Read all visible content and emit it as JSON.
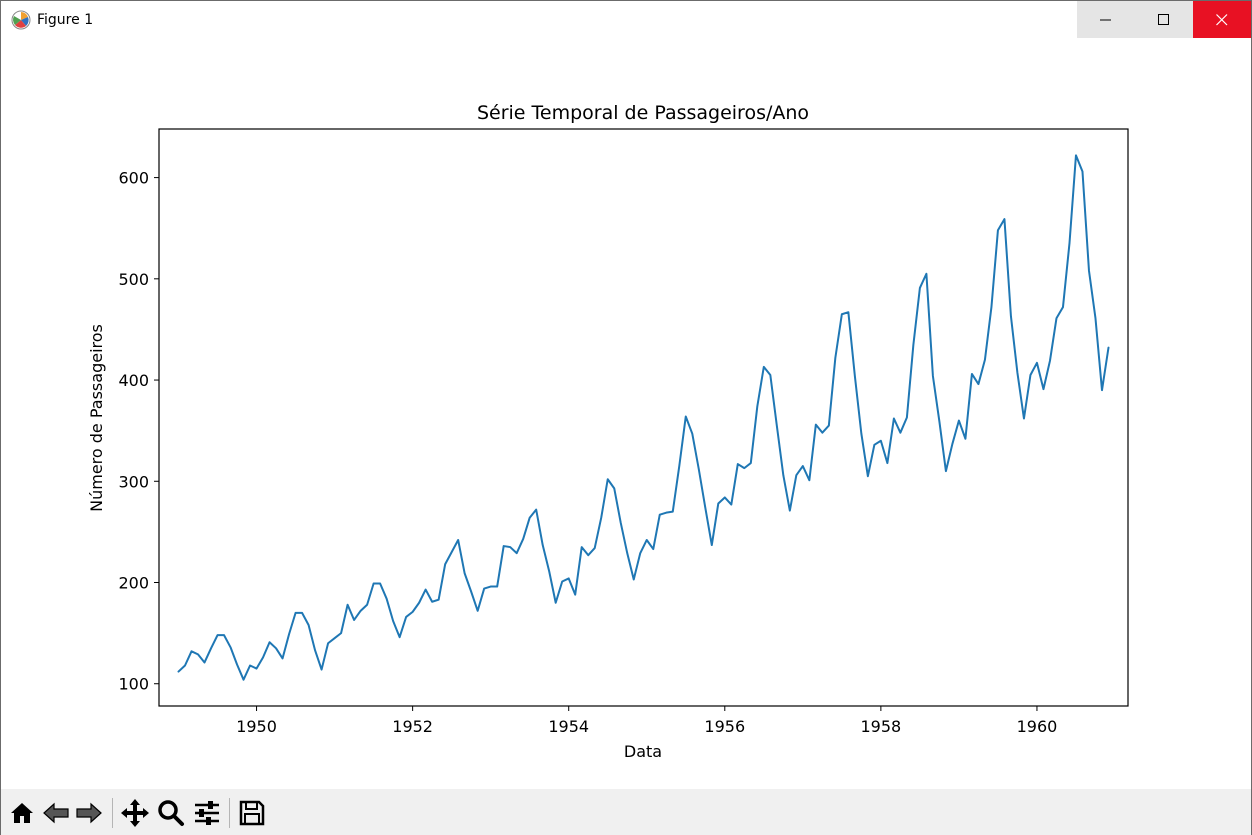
{
  "window": {
    "title": "Figure 1"
  },
  "toolbar": {
    "tools": [
      "home-icon",
      "back-icon",
      "forward-icon",
      "pan-icon",
      "zoom-icon",
      "configure-subplots-icon",
      "save-icon"
    ]
  },
  "colors": {
    "line": "#1f77b4",
    "close_button": "#e81123",
    "toolbar_bg": "#f0f0f0"
  },
  "chart_data": {
    "type": "line",
    "title": "Série Temporal de Passageiros/Ano",
    "xlabel": "Data",
    "ylabel": "Número de Passageiros",
    "xticks": [
      "1950",
      "1952",
      "1954",
      "1956",
      "1958",
      "1960"
    ],
    "yticks": [
      "100",
      "200",
      "300",
      "400",
      "500",
      "600"
    ],
    "xlim": [
      "1948-10",
      "1961-03"
    ],
    "ylim": [
      78,
      648
    ],
    "grid": false,
    "legend": "none",
    "series": [
      {
        "x_start": "1949-01",
        "x_step": "1 month",
        "values": [
          112,
          118,
          132,
          129,
          121,
          135,
          148,
          148,
          136,
          119,
          104,
          118,
          115,
          126,
          141,
          135,
          125,
          149,
          170,
          170,
          158,
          133,
          114,
          140,
          145,
          150,
          178,
          163,
          172,
          178,
          199,
          199,
          184,
          162,
          146,
          166,
          171,
          180,
          193,
          181,
          183,
          218,
          230,
          242,
          209,
          191,
          172,
          194,
          196,
          196,
          236,
          235,
          229,
          243,
          264,
          272,
          237,
          211,
          180,
          201,
          204,
          188,
          235,
          227,
          234,
          264,
          302,
          293,
          259,
          229,
          203,
          229,
          242,
          233,
          267,
          269,
          270,
          315,
          364,
          347,
          312,
          274,
          237,
          278,
          284,
          277,
          317,
          313,
          318,
          374,
          413,
          405,
          355,
          306,
          271,
          306,
          315,
          301,
          356,
          348,
          355,
          422,
          465,
          467,
          404,
          347,
          305,
          336,
          340,
          318,
          362,
          348,
          363,
          435,
          491,
          505,
          404,
          359,
          310,
          337,
          360,
          342,
          406,
          396,
          420,
          472,
          548,
          559,
          463,
          407,
          362,
          405,
          417,
          391,
          419,
          461,
          472,
          535,
          622,
          606,
          508,
          461,
          390,
          432
        ]
      }
    ]
  }
}
